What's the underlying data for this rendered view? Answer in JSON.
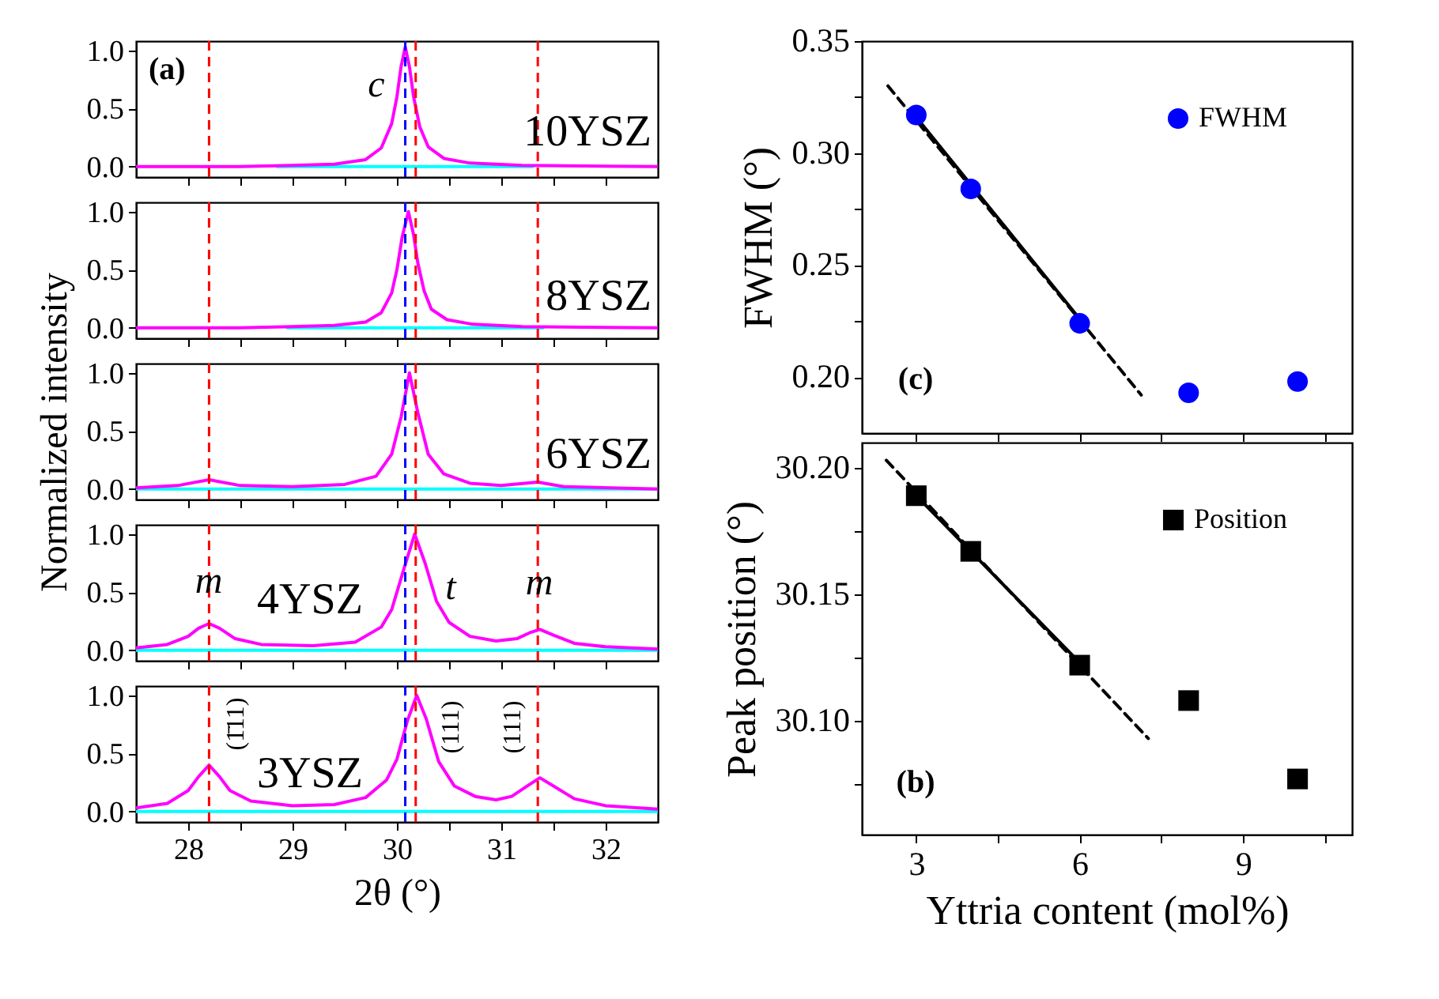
{
  "chart_data": [
    {
      "type": "line",
      "xlim": [
        27.5,
        32.5
      ],
      "xticks": [
        28,
        {
          "value": 28.5,
          "label": null
        },
        29,
        {
          "value": 29.5,
          "label": null
        },
        30,
        {
          "value": 30.5,
          "label": null
        },
        31,
        {
          "value": 31.5,
          "label": null
        },
        32
      ],
      "ylim": [
        -0.09,
        1.08
      ],
      "yticks": [
        {
          "value": 0,
          "label": "0.0"
        },
        0.5,
        {
          "value": 1,
          "label": "1.0"
        }
      ],
      "tick_labels": "y",
      "grid": false,
      "series": [
        {
          "color": "#00ffff",
          "x": [
            28.85,
            31.3
          ],
          "values": [
            0,
            0
          ]
        },
        {
          "color": "#ff00ff",
          "x": [
            27.5,
            28.5,
            29.0,
            29.4,
            29.7,
            29.85,
            29.95,
            30.0,
            30.04,
            30.08,
            30.12,
            30.16,
            30.22,
            30.3,
            30.45,
            30.7,
            31.2,
            32.5
          ],
          "values": [
            0,
            0,
            0.01,
            0.02,
            0.06,
            0.16,
            0.37,
            0.6,
            0.86,
            1.03,
            0.86,
            0.6,
            0.34,
            0.17,
            0.07,
            0.03,
            0.01,
            0
          ]
        }
      ],
      "ref_lines": [
        {
          "axis": "x",
          "value": 28.2,
          "color": "#ff0000",
          "line_style": "dashed"
        },
        {
          "axis": "x",
          "value": 30.18,
          "color": "#ff0000",
          "line_style": "dashed"
        },
        {
          "axis": "x",
          "value": 31.35,
          "color": "#ff0000",
          "line_style": "dashed"
        },
        {
          "axis": "x",
          "value": 30.08,
          "color": "#0000ff",
          "line_style": "dashed"
        }
      ],
      "annotations": [
        "(a)",
        "c",
        "10YSZ"
      ]
    },
    {
      "type": "line",
      "xlim": [
        27.5,
        32.5
      ],
      "xticks": [
        28,
        {
          "value": 28.5,
          "label": null
        },
        29,
        {
          "value": 29.5,
          "label": null
        },
        30,
        {
          "value": 30.5,
          "label": null
        },
        31,
        {
          "value": 31.5,
          "label": null
        },
        32
      ],
      "ylim": [
        -0.09,
        1.08
      ],
      "yticks": [
        {
          "value": 0,
          "label": "0.0"
        },
        0.5,
        {
          "value": 1,
          "label": "1.0"
        }
      ],
      "tick_labels": "y",
      "grid": false,
      "series": [
        {
          "color": "#00ffff",
          "x": [
            28.95,
            31.4
          ],
          "values": [
            0,
            0
          ]
        },
        {
          "color": "#ff00ff",
          "x": [
            27.5,
            28.5,
            29.0,
            29.4,
            29.7,
            29.85,
            29.95,
            30.0,
            30.05,
            30.11,
            30.16,
            30.2,
            30.26,
            30.33,
            30.48,
            30.73,
            31.2,
            32.5
          ],
          "values": [
            0,
            0,
            0.01,
            0.02,
            0.05,
            0.13,
            0.3,
            0.5,
            0.78,
            1.0,
            0.8,
            0.56,
            0.32,
            0.16,
            0.07,
            0.03,
            0.01,
            0
          ]
        }
      ],
      "ref_lines": [
        {
          "axis": "x",
          "value": 28.2,
          "color": "#ff0000",
          "line_style": "dashed"
        },
        {
          "axis": "x",
          "value": 30.18,
          "color": "#ff0000",
          "line_style": "dashed"
        },
        {
          "axis": "x",
          "value": 31.35,
          "color": "#ff0000",
          "line_style": "dashed"
        },
        {
          "axis": "x",
          "value": 30.08,
          "color": "#0000ff",
          "line_style": "dashed"
        }
      ],
      "annotations": [
        "8YSZ"
      ]
    },
    {
      "type": "line",
      "ylabel": "Normalized intensity",
      "xlim": [
        27.5,
        32.5
      ],
      "xticks": [
        28,
        {
          "value": 28.5,
          "label": null
        },
        29,
        {
          "value": 29.5,
          "label": null
        },
        30,
        {
          "value": 30.5,
          "label": null
        },
        31,
        {
          "value": 31.5,
          "label": null
        },
        32
      ],
      "ylim": [
        -0.09,
        1.08
      ],
      "yticks": [
        {
          "value": 0,
          "label": "0.0"
        },
        0.5,
        {
          "value": 1,
          "label": "1.0"
        }
      ],
      "tick_labels": "y",
      "grid": false,
      "series": [
        {
          "color": "#00ffff",
          "x": [
            27.5,
            32.5
          ],
          "values": [
            0,
            0
          ]
        },
        {
          "color": "#ff00ff",
          "x": [
            27.5,
            27.9,
            28.2,
            28.5,
            29.0,
            29.5,
            29.8,
            29.95,
            30.04,
            30.12,
            30.2,
            30.3,
            30.45,
            30.7,
            31.0,
            31.35,
            31.6,
            32.5
          ],
          "values": [
            0.01,
            0.03,
            0.08,
            0.03,
            0.02,
            0.04,
            0.11,
            0.3,
            0.62,
            1.0,
            0.66,
            0.3,
            0.13,
            0.05,
            0.03,
            0.06,
            0.02,
            0
          ]
        }
      ],
      "ref_lines": [
        {
          "axis": "x",
          "value": 28.2,
          "color": "#ff0000",
          "line_style": "dashed"
        },
        {
          "axis": "x",
          "value": 30.18,
          "color": "#ff0000",
          "line_style": "dashed"
        },
        {
          "axis": "x",
          "value": 31.35,
          "color": "#ff0000",
          "line_style": "dashed"
        },
        {
          "axis": "x",
          "value": 30.08,
          "color": "#0000ff",
          "line_style": "dashed"
        }
      ],
      "annotations": [
        "6YSZ"
      ]
    },
    {
      "type": "line",
      "xlim": [
        27.5,
        32.5
      ],
      "xticks": [
        28,
        {
          "value": 28.5,
          "label": null
        },
        29,
        {
          "value": 29.5,
          "label": null
        },
        30,
        {
          "value": 30.5,
          "label": null
        },
        31,
        {
          "value": 31.5,
          "label": null
        },
        32
      ],
      "ylim": [
        -0.09,
        1.08
      ],
      "yticks": [
        {
          "value": 0,
          "label": "0.0"
        },
        0.5,
        {
          "value": 1,
          "label": "1.0"
        }
      ],
      "tick_labels": "y",
      "grid": false,
      "series": [
        {
          "color": "#00ffff",
          "x": [
            27.5,
            32.5
          ],
          "values": [
            0,
            0
          ]
        },
        {
          "color": "#ff00ff",
          "x": [
            27.5,
            27.8,
            28.0,
            28.1,
            28.2,
            28.3,
            28.45,
            28.7,
            29.2,
            29.6,
            29.85,
            29.95,
            30.05,
            30.17,
            30.27,
            30.38,
            30.5,
            30.7,
            30.95,
            31.15,
            31.27,
            31.37,
            31.5,
            31.7,
            32.0,
            32.5
          ],
          "values": [
            0.02,
            0.05,
            0.12,
            0.19,
            0.23,
            0.19,
            0.1,
            0.05,
            0.04,
            0.07,
            0.2,
            0.35,
            0.65,
            1.0,
            0.75,
            0.42,
            0.24,
            0.12,
            0.08,
            0.1,
            0.15,
            0.18,
            0.13,
            0.06,
            0.03,
            0.01
          ]
        }
      ],
      "ref_lines": [
        {
          "axis": "x",
          "value": 28.2,
          "color": "#ff0000",
          "line_style": "dashed"
        },
        {
          "axis": "x",
          "value": 30.18,
          "color": "#ff0000",
          "line_style": "dashed"
        },
        {
          "axis": "x",
          "value": 31.35,
          "color": "#ff0000",
          "line_style": "dashed"
        },
        {
          "axis": "x",
          "value": 30.08,
          "color": "#0000ff",
          "line_style": "dashed"
        }
      ],
      "annotations": [
        "m",
        "4YSZ",
        "t",
        "m"
      ]
    },
    {
      "type": "line",
      "xlabel": "2θ (°)",
      "xlim": [
        27.5,
        32.5
      ],
      "xticks": [
        28,
        {
          "value": 28.5,
          "label": null
        },
        29,
        {
          "value": 29.5,
          "label": null
        },
        30,
        {
          "value": 30.5,
          "label": null
        },
        31,
        {
          "value": 31.5,
          "label": null
        },
        32
      ],
      "ylim": [
        -0.09,
        1.08
      ],
      "yticks": [
        {
          "value": 0,
          "label": "0.0"
        },
        0.5,
        {
          "value": 1,
          "label": "1.0"
        }
      ],
      "grid": false,
      "series": [
        {
          "color": "#00ffff",
          "x": [
            27.5,
            32.5
          ],
          "values": [
            0,
            0
          ]
        },
        {
          "color": "#ff00ff",
          "x": [
            27.5,
            27.8,
            28.0,
            28.1,
            28.2,
            28.3,
            28.4,
            28.6,
            29.0,
            29.4,
            29.7,
            29.9,
            30.0,
            30.1,
            30.19,
            30.28,
            30.4,
            30.55,
            30.75,
            30.95,
            31.1,
            31.25,
            31.37,
            31.5,
            31.7,
            32.0,
            32.5
          ],
          "values": [
            0.03,
            0.07,
            0.18,
            0.3,
            0.4,
            0.3,
            0.18,
            0.09,
            0.05,
            0.06,
            0.12,
            0.27,
            0.45,
            0.78,
            1.0,
            0.8,
            0.43,
            0.22,
            0.13,
            0.1,
            0.13,
            0.22,
            0.29,
            0.22,
            0.11,
            0.05,
            0.02
          ]
        }
      ],
      "ref_lines": [
        {
          "axis": "x",
          "value": 28.2,
          "color": "#ff0000",
          "line_style": "dashed"
        },
        {
          "axis": "x",
          "value": 30.18,
          "color": "#ff0000",
          "line_style": "dashed"
        },
        {
          "axis": "x",
          "value": 31.35,
          "color": "#ff0000",
          "line_style": "dashed"
        },
        {
          "axis": "x",
          "value": 30.08,
          "color": "#0000ff",
          "line_style": "dashed"
        }
      ],
      "annotations": [
        "(1̄11)",
        "(111)",
        "(111)",
        "3YSZ"
      ]
    },
    {
      "type": "scatter",
      "ylabel": "FWHM (°)",
      "xlim": [
        2,
        11
      ],
      "xticks": [
        3,
        {
          "value": 4.5,
          "label": null
        },
        6,
        {
          "value": 7.5,
          "label": null
        },
        9,
        {
          "value": 10.5,
          "label": null
        }
      ],
      "ylim": [
        0.175,
        0.35
      ],
      "yticks": [
        {
          "value": 0.2,
          "label": "0.20"
        },
        {
          "value": 0.225,
          "label": null
        },
        0.25,
        {
          "value": 0.275,
          "label": null
        },
        {
          "value": 0.3,
          "label": "0.30"
        },
        {
          "value": 0.325,
          "label": null
        },
        0.35
      ],
      "tick_labels": "y",
      "grid": false,
      "legend": "top right",
      "series": [
        {
          "type": "line",
          "color": "#000000",
          "line_style": "dashed",
          "x": [
            2.48,
            7.13
          ],
          "values": [
            0.33,
            0.192
          ]
        },
        {
          "type": "line",
          "color": "#000000",
          "line_style": "solid",
          "x": [
            3,
            6
          ],
          "values": [
            0.316,
            0.226
          ]
        },
        {
          "name": "FWHM",
          "marker": "circle",
          "color": "#0000ff",
          "x": [
            3,
            4,
            6,
            8,
            10
          ],
          "values": [
            0.317,
            0.284,
            0.224,
            0.193,
            0.198
          ]
        }
      ],
      "annotations": [
        "(c)"
      ]
    },
    {
      "type": "scatter",
      "xlabel": "Yttria content (mol%)",
      "ylabel": "Peak position (°)",
      "xlim": [
        2,
        11
      ],
      "xticks": [
        3,
        {
          "value": 4.5,
          "label": null
        },
        6,
        {
          "value": 7.5,
          "label": null
        },
        9,
        {
          "value": 10.5,
          "label": null
        }
      ],
      "ylim": [
        30.055,
        30.21
      ],
      "yticks": [
        {
          "value": 30.075,
          "label": null
        },
        {
          "value": 30.1,
          "label": "30.10"
        },
        {
          "value": 30.125,
          "label": null
        },
        30.15,
        {
          "value": 30.175,
          "label": null
        },
        {
          "value": 30.2,
          "label": "30.20"
        }
      ],
      "grid": false,
      "legend": "top right",
      "series": [
        {
          "type": "line",
          "color": "#000000",
          "line_style": "dashed",
          "x": [
            2.45,
            7.26
          ],
          "values": [
            30.203,
            30.093
          ]
        },
        {
          "type": "line",
          "color": "#000000",
          "line_style": "solid",
          "x": [
            3,
            6
          ],
          "values": [
            30.189,
            30.123
          ]
        },
        {
          "name": "Position",
          "marker": "square",
          "color": "#000000",
          "x": [
            3,
            4,
            6,
            8,
            10
          ],
          "values": [
            30.189,
            30.167,
            30.122,
            30.108,
            30.077
          ]
        }
      ],
      "annotations": [
        "(b)"
      ]
    }
  ]
}
